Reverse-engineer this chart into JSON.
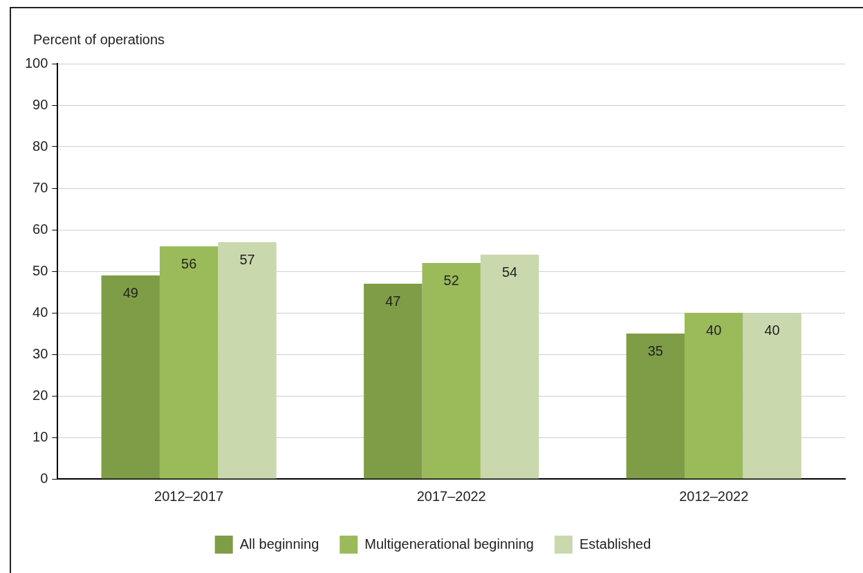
{
  "chart_data": {
    "type": "bar",
    "ylabel": "Percent of operations",
    "categories": [
      "2012–2017",
      "2017–2022",
      "2012–2022"
    ],
    "series": [
      {
        "name": "All beginning",
        "color": "#7f9c47",
        "values": [
          49,
          47,
          35
        ]
      },
      {
        "name": "Multigenerational beginning",
        "color": "#9bbb5a",
        "values": [
          56,
          52,
          40
        ]
      },
      {
        "name": "Established",
        "color": "#c9d9ad",
        "values": [
          57,
          54,
          40
        ]
      }
    ],
    "ylim": [
      0,
      100
    ],
    "yticks": [
      0,
      10,
      20,
      30,
      40,
      50,
      60,
      70,
      80,
      90,
      100
    ],
    "grid": "y",
    "legend": "bottom",
    "data_labels": true
  }
}
